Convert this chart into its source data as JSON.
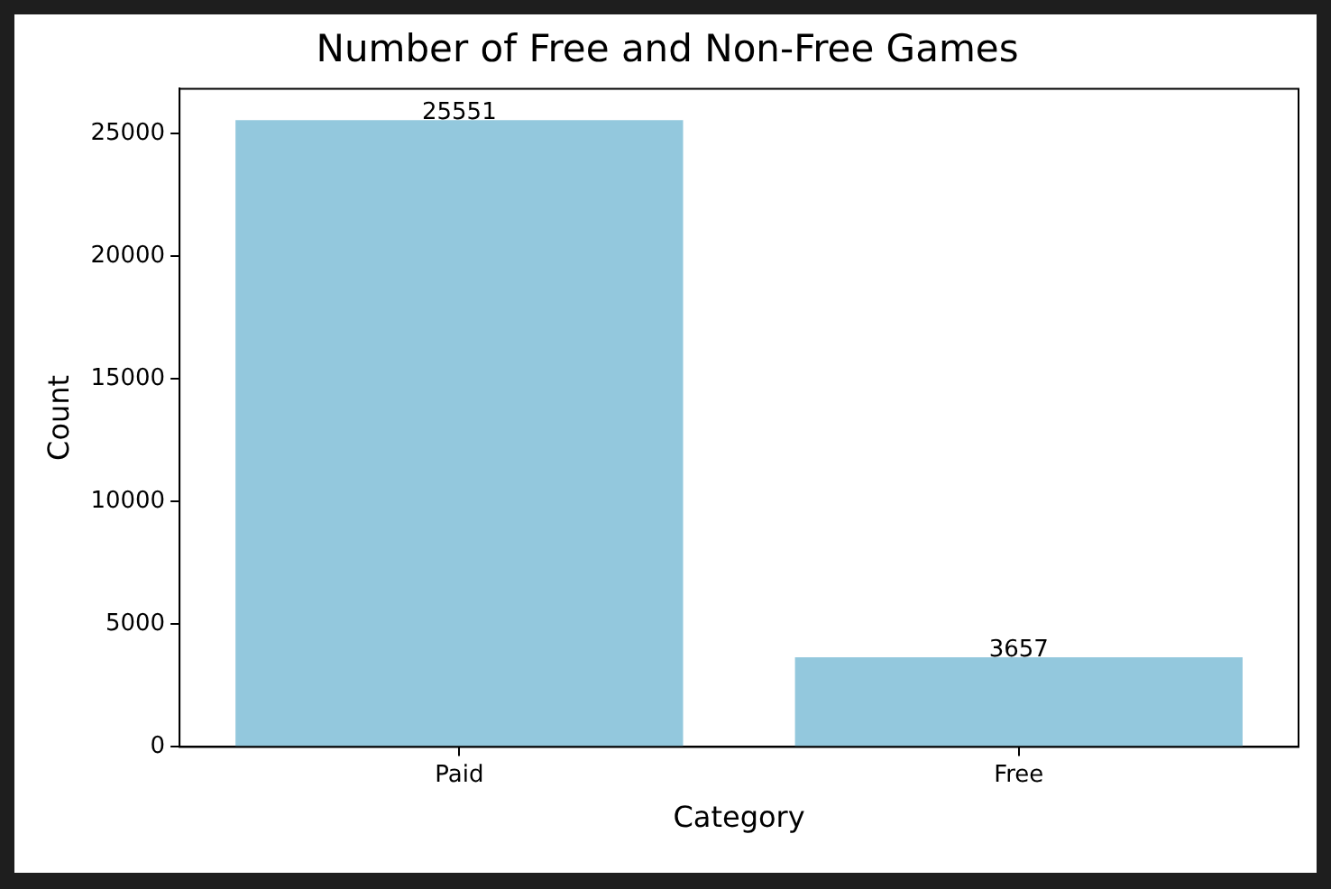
{
  "chart_data": {
    "type": "bar",
    "title": "Number of Free and Non-Free Games",
    "xlabel": "Category",
    "ylabel": "Count",
    "categories": [
      "Paid",
      "Free"
    ],
    "values": [
      25551,
      3657
    ],
    "color": "#93c8dd",
    "ylim": [
      0,
      26828
    ],
    "yticks": [
      0,
      5000,
      10000,
      15000,
      20000,
      25000
    ],
    "grid": false,
    "legend": false,
    "data_labels": true
  }
}
